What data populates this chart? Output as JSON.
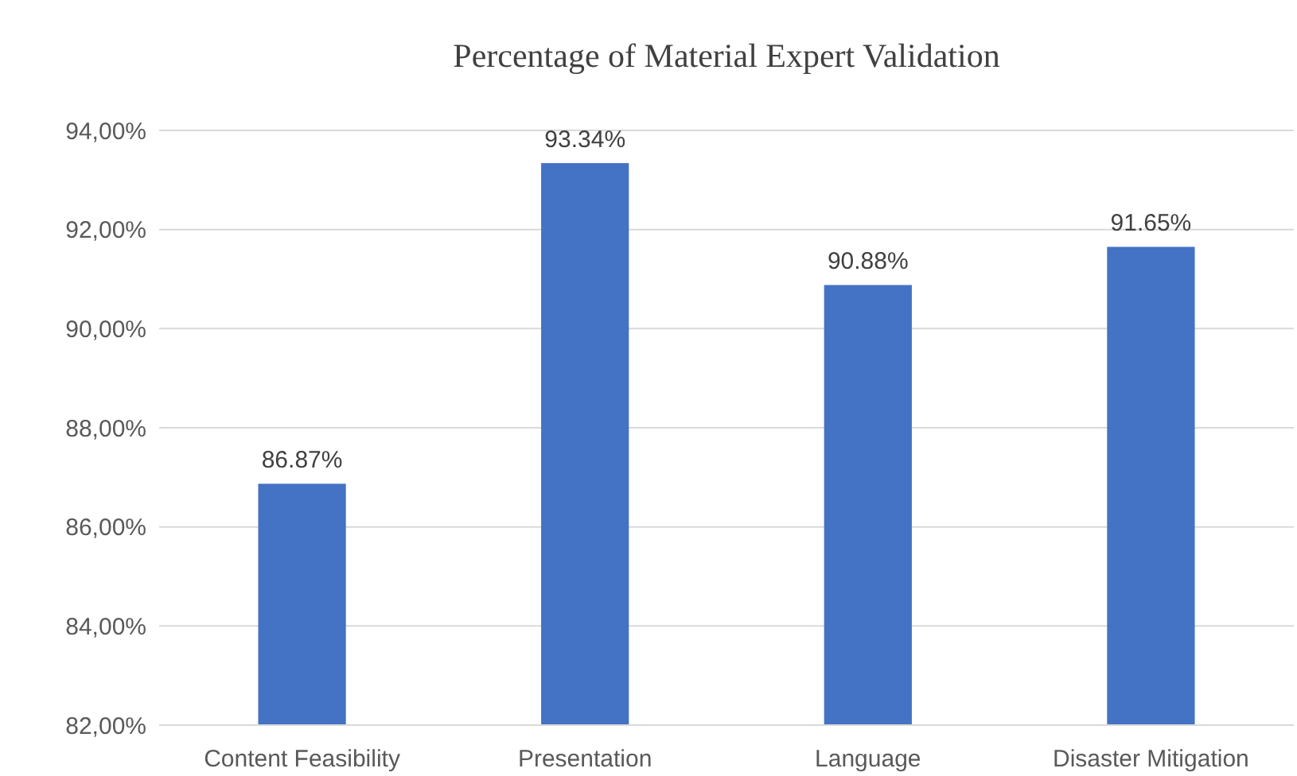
{
  "chart_data": {
    "type": "bar",
    "title": "Percentage  of Material Expert Validation",
    "categories": [
      "Content Feasibility",
      "Presentation",
      "Language",
      "Disaster Mitigation"
    ],
    "values": [
      86.87,
      93.34,
      90.88,
      91.65
    ],
    "value_labels": [
      "86.87%",
      "93.34%",
      "90.88%",
      "91.65%"
    ],
    "color": "#4472c4",
    "ylim": [
      82,
      94
    ],
    "yticks": [
      {
        "value": 82,
        "label": "82,00%"
      },
      {
        "value": 84,
        "label": "84,00%"
      },
      {
        "value": 86,
        "label": "86,00%"
      },
      {
        "value": 88,
        "label": "88,00%"
      },
      {
        "value": 90,
        "label": "90,00%"
      },
      {
        "value": 92,
        "label": "92,00%"
      },
      {
        "value": 94,
        "label": "94,00%"
      }
    ],
    "grid": "y"
  }
}
